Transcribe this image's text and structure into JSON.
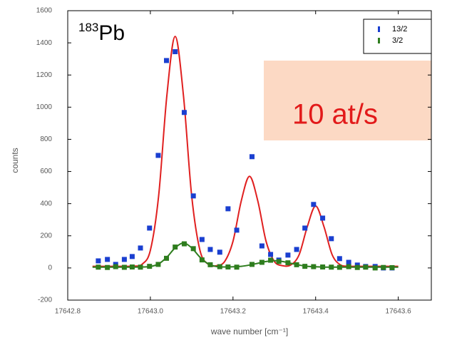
{
  "chart_data": {
    "type": "scatter",
    "title": {
      "superscript": "183",
      "text": "Pb"
    },
    "annotation": "10 at/s",
    "x_label": "wave number [cm⁻¹]",
    "y_label": "counts",
    "xlim": [
      17642.8,
      17643.68
    ],
    "ylim": [
      -200,
      1600
    ],
    "xticks": [
      17642.8,
      {
        "value": 17643.0,
        "label": "17643.0"
      },
      17643.2,
      17643.4,
      17643.6
    ],
    "yticks": [
      -200,
      0,
      200,
      400,
      600,
      800,
      1000,
      1200,
      1400,
      1600
    ],
    "legend": "top-right",
    "series": [
      {
        "name": "13/2",
        "color": "#1a3fd0",
        "x": [
          17642.874,
          17642.896,
          17642.916,
          17642.937,
          17642.956,
          17642.976,
          17642.998,
          17643.019,
          17643.039,
          17643.06,
          17643.082,
          17643.104,
          17643.125,
          17643.145,
          17643.168,
          17643.188,
          17643.209,
          17643.246,
          17643.27,
          17643.291,
          17643.311,
          17643.333,
          17643.354,
          17643.374,
          17643.395,
          17643.417,
          17643.438,
          17643.458,
          17643.48,
          17643.501,
          17643.521,
          17643.544,
          17643.564,
          17643.585
        ],
        "values": [
          44,
          53,
          22,
          53,
          71,
          124,
          248,
          700,
          1290,
          1345,
          967,
          448,
          177,
          115,
          98,
          368,
          235,
          692,
          137,
          84,
          49,
          80,
          115,
          248,
          395,
          310,
          182,
          58,
          35,
          18,
          9,
          9,
          0,
          0
        ]
      },
      {
        "name": "3/2",
        "color": "#2e7d1e",
        "x": [
          17642.874,
          17642.896,
          17642.916,
          17642.937,
          17642.956,
          17642.976,
          17642.998,
          17643.019,
          17643.039,
          17643.06,
          17643.082,
          17643.104,
          17643.125,
          17643.145,
          17643.168,
          17643.188,
          17643.209,
          17643.246,
          17643.27,
          17643.291,
          17643.311,
          17643.333,
          17643.354,
          17643.374,
          17643.395,
          17643.417,
          17643.438,
          17643.458,
          17643.48,
          17643.501,
          17643.521,
          17643.544,
          17643.564,
          17643.585
        ],
        "values": [
          5,
          3,
          8,
          4,
          6,
          5,
          10,
          22,
          60,
          130,
          150,
          120,
          50,
          20,
          8,
          6,
          5,
          22,
          35,
          48,
          40,
          32,
          20,
          10,
          8,
          6,
          5,
          4,
          8,
          3,
          5,
          0,
          3,
          2
        ]
      }
    ],
    "fits": [
      {
        "color": "#e02020",
        "x": [
          17642.86,
          17642.88,
          17642.9,
          17642.92,
          17642.94,
          17642.96,
          17642.98,
          17643.0,
          17643.02,
          17643.04,
          17643.06,
          17643.08,
          17643.1,
          17643.12,
          17643.14,
          17643.16,
          17643.18,
          17643.2,
          17643.22,
          17643.24,
          17643.26,
          17643.28,
          17643.3,
          17643.32,
          17643.34,
          17643.36,
          17643.38,
          17643.4,
          17643.42,
          17643.44,
          17643.46,
          17643.48,
          17643.5,
          17643.52,
          17643.54,
          17643.56,
          17643.58,
          17643.6
        ],
        "values": [
          10,
          10,
          10,
          10,
          10,
          11,
          23,
          110,
          448,
          1074,
          1440,
          1074,
          448,
          110,
          23,
          14,
          41,
          166,
          417,
          570,
          417,
          166,
          41,
          14,
          19,
          82,
          258,
          385,
          258,
          82,
          19,
          11,
          10,
          10,
          10,
          10,
          10,
          10
        ]
      },
      {
        "color": "#2e7d1e",
        "x": [
          17642.86,
          17642.88,
          17642.9,
          17642.92,
          17642.94,
          17642.96,
          17642.98,
          17643.0,
          17643.02,
          17643.04,
          17643.06,
          17643.08,
          17643.1,
          17643.12,
          17643.14,
          17643.16,
          17643.18,
          17643.2,
          17643.22,
          17643.24,
          17643.26,
          17643.28,
          17643.3,
          17643.32,
          17643.34,
          17643.36,
          17643.38,
          17643.4,
          17643.42,
          17643.44,
          17643.46,
          17643.48,
          17643.5,
          17643.52,
          17643.54,
          17643.56,
          17643.58,
          17643.6
        ],
        "values": [
          5,
          5,
          5,
          5,
          5,
          5,
          6,
          9,
          25,
          67,
          125,
          155,
          125,
          67,
          25,
          9,
          6,
          7,
          10,
          18,
          29,
          40,
          45,
          40,
          29,
          18,
          10,
          7,
          5,
          5,
          5,
          5,
          5,
          5,
          5,
          5,
          5,
          5
        ]
      }
    ]
  }
}
